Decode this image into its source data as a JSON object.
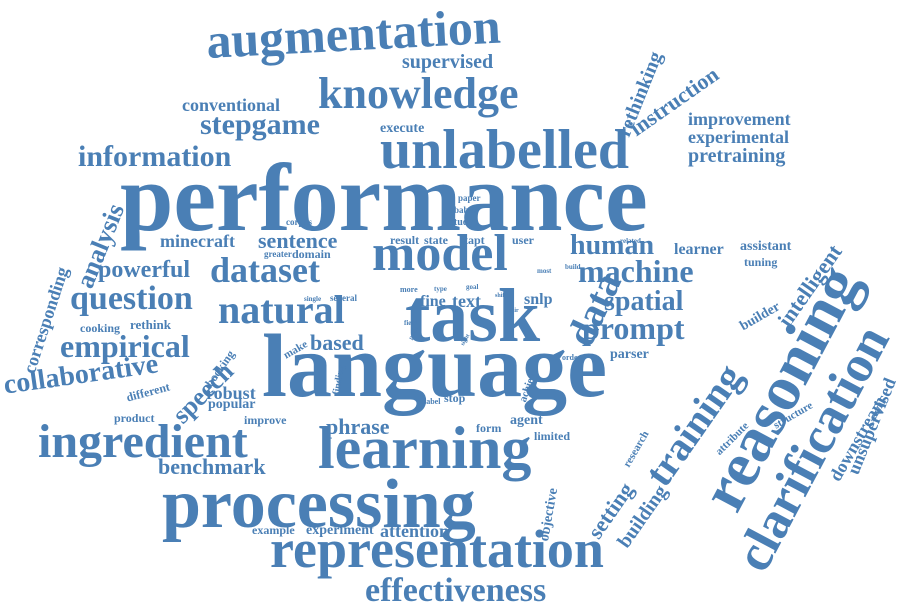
{
  "word_color": "#4a7fb5",
  "background_color": "#ffffff",
  "words": [
    {
      "text": "performance",
      "r": 0
    },
    {
      "text": "language",
      "r": 0
    },
    {
      "text": "task",
      "r": 0
    },
    {
      "text": "model",
      "r": 0
    },
    {
      "text": "processing",
      "r": 0
    },
    {
      "text": "representation",
      "r": 0
    },
    {
      "text": "learning",
      "r": 0
    },
    {
      "text": "unlabelled",
      "r": 0
    },
    {
      "text": "augmentation",
      "r": -3
    },
    {
      "text": "knowledge",
      "r": 0
    },
    {
      "text": "reasoning",
      "r": -62
    },
    {
      "text": "clarification",
      "r": -62
    },
    {
      "text": "training",
      "r": -55
    },
    {
      "text": "ingredient",
      "r": 0
    },
    {
      "text": "natural",
      "r": 0
    },
    {
      "text": "dataset",
      "r": 0
    },
    {
      "text": "question",
      "r": 0
    },
    {
      "text": "data",
      "r": -65
    },
    {
      "text": "effectiveness",
      "r": 0
    },
    {
      "text": "information",
      "r": 0
    },
    {
      "text": "stepgame",
      "r": 0
    },
    {
      "text": "machine",
      "r": 0
    },
    {
      "text": "human",
      "r": 0
    },
    {
      "text": "prompt",
      "r": 0
    },
    {
      "text": "spatial",
      "r": 0
    },
    {
      "text": "empirical",
      "r": 0
    },
    {
      "text": "collaborative",
      "r": -8
    },
    {
      "text": "powerful",
      "r": 0
    },
    {
      "text": "sentence",
      "r": 0
    },
    {
      "text": "minecraft",
      "r": 0
    },
    {
      "text": "analysis",
      "r": -68
    },
    {
      "text": "corresponding",
      "r": -72
    },
    {
      "text": "speech",
      "r": -45
    },
    {
      "text": "benchmark",
      "r": 0
    },
    {
      "text": "phrase",
      "r": 0
    },
    {
      "text": "based",
      "r": 0
    },
    {
      "text": "setting",
      "r": -55
    },
    {
      "text": "building",
      "r": -55
    },
    {
      "text": "intelligent",
      "r": -55
    },
    {
      "text": "rethinking",
      "r": -68
    },
    {
      "text": "instruction",
      "r": -35
    },
    {
      "text": "improvement",
      "r": 0
    },
    {
      "text": "experimental",
      "r": 0
    },
    {
      "text": "pretraining",
      "r": 0
    },
    {
      "text": "supervised",
      "r": 0
    },
    {
      "text": "conventional",
      "r": 0
    },
    {
      "text": "execute",
      "r": 0
    },
    {
      "text": "downstream",
      "r": -60
    },
    {
      "text": "unsupervised",
      "r": -68
    },
    {
      "text": "attention",
      "r": 0
    },
    {
      "text": "experiment",
      "r": 0
    },
    {
      "text": "example",
      "r": 0
    },
    {
      "text": "objective",
      "r": -80
    },
    {
      "text": "fine",
      "r": 0
    },
    {
      "text": "text",
      "r": 0
    },
    {
      "text": "snlp",
      "r": 0
    },
    {
      "text": "learner",
      "r": 0
    },
    {
      "text": "assistant",
      "r": 0
    },
    {
      "text": "tuning",
      "r": 0
    },
    {
      "text": "builder",
      "r": -30
    },
    {
      "text": "parser",
      "r": 0
    },
    {
      "text": "agent",
      "r": 0
    },
    {
      "text": "limited",
      "r": 0
    },
    {
      "text": "form",
      "r": 0
    },
    {
      "text": "stop",
      "r": 0
    },
    {
      "text": "label",
      "r": 0
    },
    {
      "text": "achieve",
      "r": -70
    },
    {
      "text": "research",
      "r": -60
    },
    {
      "text": "attribute",
      "r": -45
    },
    {
      "text": "structure",
      "r": -30
    },
    {
      "text": "robust",
      "r": 0
    },
    {
      "text": "popular",
      "r": 0
    },
    {
      "text": "improve",
      "r": 0
    },
    {
      "text": "different",
      "r": -15
    },
    {
      "text": "product",
      "r": 0
    },
    {
      "text": "booking",
      "r": -55
    },
    {
      "text": "rethink",
      "r": 0
    },
    {
      "text": "cooking",
      "r": 0
    },
    {
      "text": "make",
      "r": -30
    },
    {
      "text": "finding",
      "r": -80
    },
    {
      "text": "result",
      "r": 0
    },
    {
      "text": "state",
      "r": 0
    },
    {
      "text": "tapt",
      "r": 0
    },
    {
      "text": "user",
      "r": 0
    },
    {
      "text": "domain",
      "r": 0
    },
    {
      "text": "greater",
      "r": 0
    },
    {
      "text": "corpus",
      "r": 0
    },
    {
      "text": "study",
      "r": 0
    },
    {
      "text": "babus",
      "r": 0
    },
    {
      "text": "paper",
      "r": 0
    },
    {
      "text": "type",
      "r": 0
    },
    {
      "text": "goal",
      "r": 0
    },
    {
      "text": "most",
      "r": 0
    },
    {
      "text": "related",
      "r": 0
    },
    {
      "text": "build",
      "r": 0
    },
    {
      "text": "single",
      "r": 0
    },
    {
      "text": "several",
      "r": 0
    },
    {
      "text": "more",
      "r": 0
    },
    {
      "text": "field",
      "r": 0
    },
    {
      "text": "shift",
      "r": 0
    },
    {
      "text": "pair",
      "r": 0
    },
    {
      "text": "sight",
      "r": -60
    },
    {
      "text": "point",
      "r": -60
    },
    {
      "text": "order",
      "r": 0
    }
  ]
}
